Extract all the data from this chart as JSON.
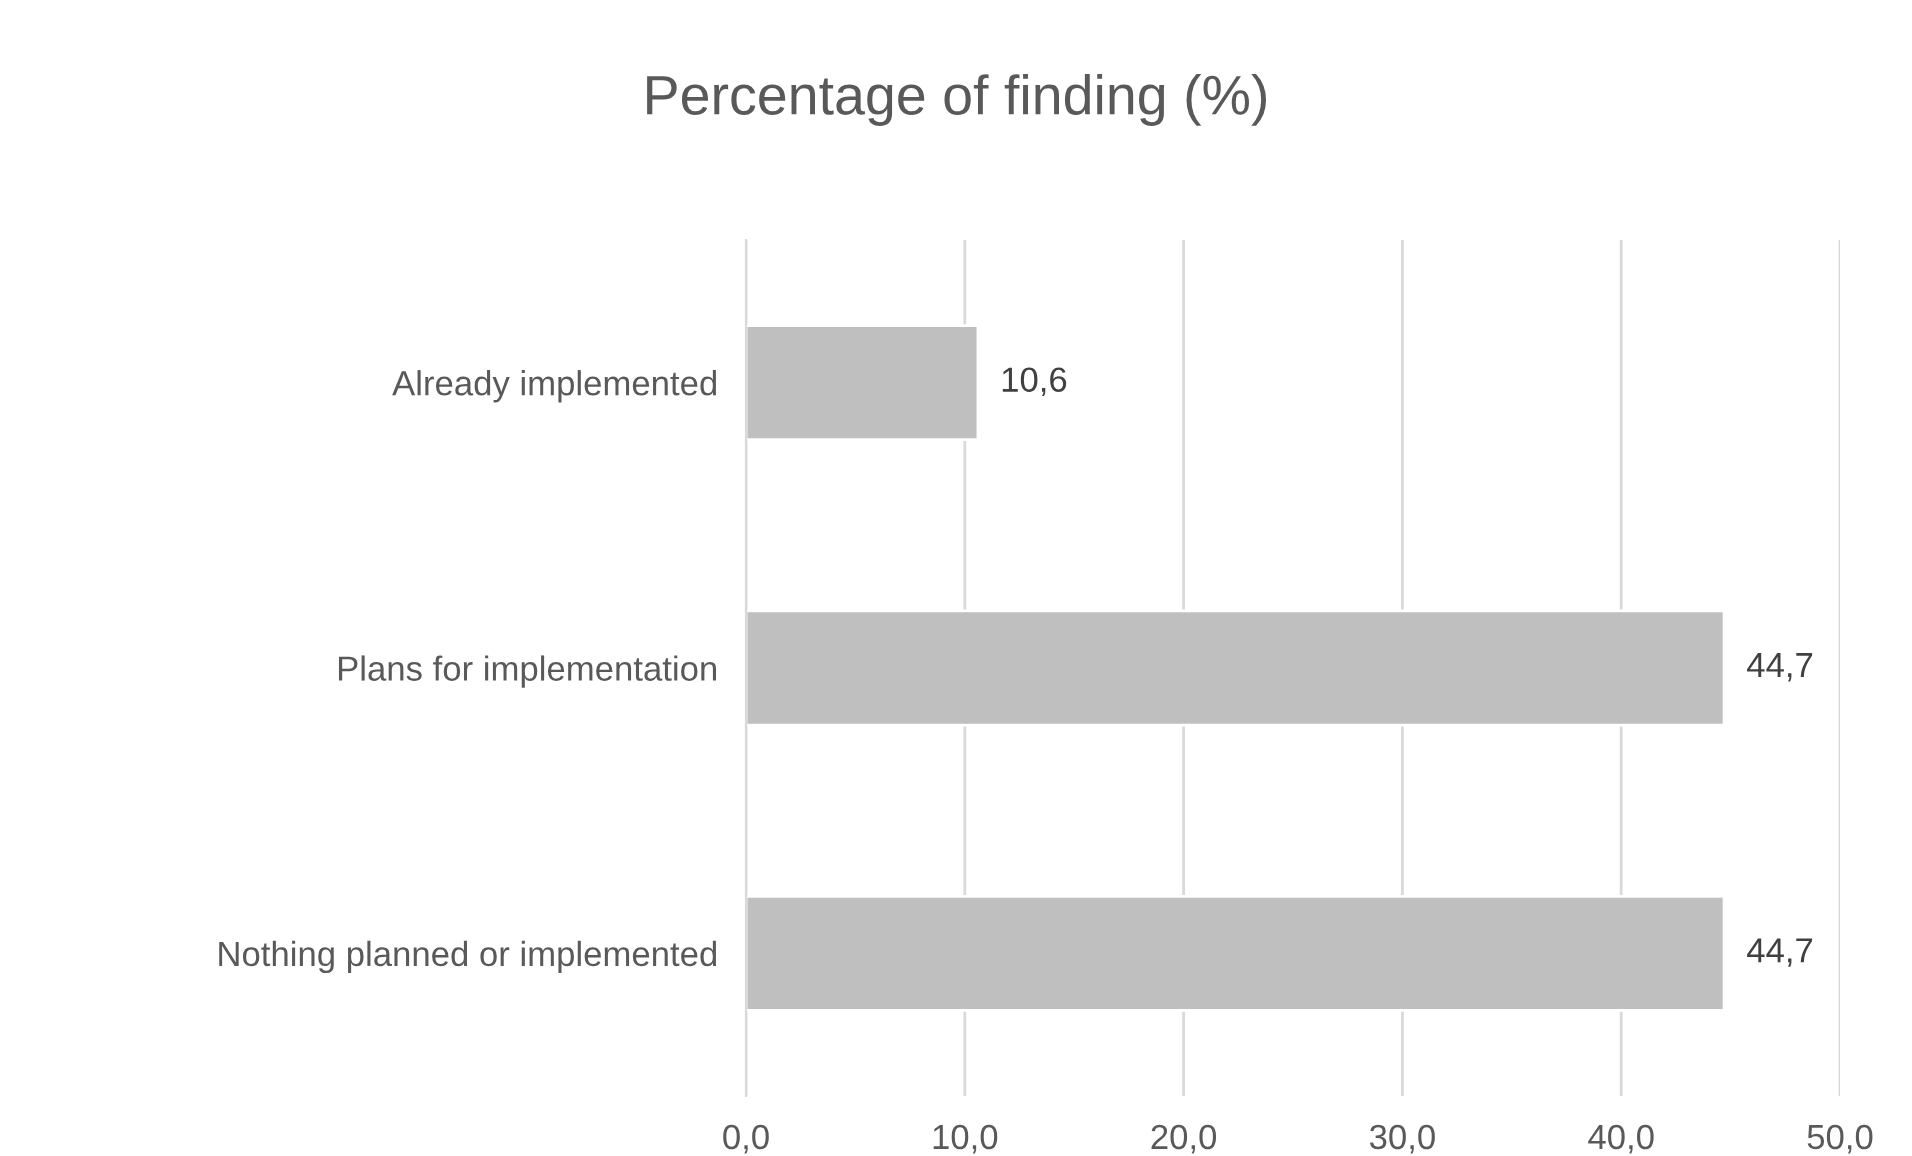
{
  "chart_data": {
    "type": "bar",
    "orientation": "horizontal",
    "title": "Percentage of finding (%)",
    "categories": [
      "Already implemented",
      "Plans for implementation",
      "Nothing planned or implemented"
    ],
    "values": [
      10.6,
      44.7,
      44.7
    ],
    "color": "#bfbfbf",
    "value_labels": [
      "10,6",
      "44,7",
      "44,7"
    ],
    "xlim": [
      0,
      50
    ],
    "xticks": [
      {
        "value": 0,
        "label": "0,0"
      },
      {
        "value": 10,
        "label": "10,0"
      },
      {
        "value": 20,
        "label": "20,0"
      },
      {
        "value": 30,
        "label": "30,0"
      },
      {
        "value": 40,
        "label": "40,0"
      },
      {
        "value": 50,
        "label": "50,0"
      }
    ],
    "grid": "x",
    "legend": false
  }
}
